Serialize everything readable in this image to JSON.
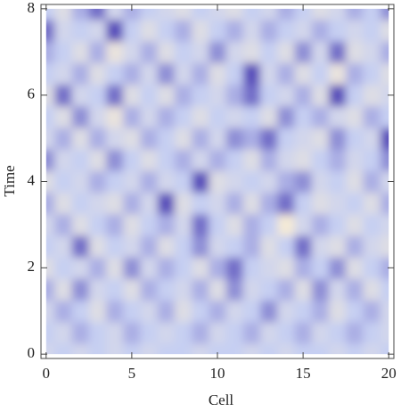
{
  "chart_data": {
    "type": "heatmap",
    "xlabel": "Cell",
    "ylabel": "Time",
    "x": [
      0,
      1,
      2,
      3,
      4,
      5,
      6,
      7,
      8,
      9,
      10,
      11,
      12,
      13,
      14,
      15,
      16,
      17,
      18,
      19,
      20
    ],
    "y": [
      0,
      0.5,
      1,
      1.5,
      2,
      2.5,
      3,
      3.5,
      4,
      4.5,
      5,
      5.5,
      6,
      6.5,
      7,
      7.5,
      8
    ],
    "z": [
      [
        0.4,
        0.5,
        0.4,
        0.5,
        0.4,
        0.5,
        0.4,
        0.5,
        0.5,
        0.4,
        0.5,
        0.5,
        0.4,
        0.5,
        0.4,
        0.5,
        0.5,
        0.4,
        0.5,
        0.4,
        0.5
      ],
      [
        0.5,
        0.4,
        0.6,
        0.5,
        0.4,
        0.6,
        0.5,
        0.4,
        0.5,
        0.6,
        0.4,
        0.5,
        0.6,
        0.4,
        0.5,
        0.6,
        0.4,
        0.5,
        0.6,
        0.5,
        0.4
      ],
      [
        0.4,
        0.6,
        0.5,
        0.3,
        0.6,
        0.5,
        0.4,
        0.6,
        0.3,
        0.5,
        0.6,
        0.4,
        0.5,
        0.7,
        0.4,
        0.5,
        0.6,
        0.3,
        0.5,
        0.6,
        0.4
      ],
      [
        0.6,
        0.3,
        0.7,
        0.4,
        0.5,
        0.3,
        0.6,
        0.5,
        0.4,
        0.6,
        0.3,
        0.7,
        0.4,
        0.5,
        0.6,
        0.3,
        0.7,
        0.4,
        0.6,
        0.3,
        0.5
      ],
      [
        0.3,
        0.5,
        0.4,
        0.6,
        0.3,
        0.7,
        0.4,
        0.6,
        0.5,
        0.3,
        0.6,
        0.8,
        0.5,
        0.4,
        0.3,
        0.6,
        0.5,
        0.7,
        0.3,
        0.5,
        0.6
      ],
      [
        0.5,
        0.4,
        0.8,
        0.3,
        0.5,
        0.4,
        0.6,
        0.3,
        0.5,
        0.7,
        0.4,
        0.5,
        0.6,
        0.3,
        0.5,
        0.8,
        0.4,
        0.3,
        0.6,
        0.4,
        0.3
      ],
      [
        0.4,
        0.6,
        0.3,
        0.5,
        0.6,
        0.3,
        0.5,
        0.6,
        0.4,
        0.8,
        0.5,
        0.3,
        0.6,
        0.5,
        0.1,
        0.4,
        0.6,
        0.5,
        0.3,
        0.5,
        0.4
      ],
      [
        0.6,
        0.3,
        0.5,
        0.4,
        0.3,
        0.6,
        0.4,
        0.9,
        0.3,
        0.5,
        0.4,
        0.6,
        0.3,
        0.6,
        0.8,
        0.5,
        0.3,
        0.4,
        0.5,
        0.3,
        0.6
      ],
      [
        0.3,
        0.5,
        0.4,
        0.6,
        0.5,
        0.4,
        0.6,
        0.4,
        0.5,
        0.9,
        0.3,
        0.4,
        0.5,
        0.4,
        0.6,
        0.7,
        0.4,
        0.5,
        0.3,
        0.6,
        0.4
      ],
      [
        0.7,
        0.4,
        0.5,
        0.3,
        0.7,
        0.5,
        0.3,
        0.5,
        0.6,
        0.4,
        0.6,
        0.5,
        0.3,
        0.6,
        0.4,
        0.3,
        0.5,
        0.6,
        0.4,
        0.5,
        0.7
      ],
      [
        0.4,
        0.6,
        0.3,
        0.6,
        0.4,
        0.3,
        0.6,
        0.5,
        0.3,
        0.6,
        0.4,
        0.7,
        0.6,
        0.8,
        0.5,
        0.4,
        0.3,
        0.7,
        0.5,
        0.4,
        0.9
      ],
      [
        0.5,
        0.3,
        0.7,
        0.4,
        0.2,
        0.6,
        0.4,
        0.6,
        0.5,
        0.3,
        0.5,
        0.4,
        0.5,
        0.3,
        0.7,
        0.5,
        0.6,
        0.4,
        0.3,
        0.6,
        0.5
      ],
      [
        0.3,
        0.8,
        0.4,
        0.5,
        0.8,
        0.3,
        0.5,
        0.3,
        0.6,
        0.5,
        0.4,
        0.6,
        0.8,
        0.5,
        0.4,
        0.6,
        0.3,
        0.9,
        0.5,
        0.3,
        0.4
      ],
      [
        0.5,
        0.4,
        0.6,
        0.3,
        0.5,
        0.6,
        0.4,
        0.7,
        0.4,
        0.6,
        0.3,
        0.5,
        0.9,
        0.4,
        0.6,
        0.3,
        0.5,
        0.2,
        0.6,
        0.5,
        0.3
      ],
      [
        0.6,
        0.5,
        0.3,
        0.6,
        0.2,
        0.4,
        0.6,
        0.3,
        0.5,
        0.4,
        0.7,
        0.4,
        0.3,
        0.5,
        0.3,
        0.7,
        0.4,
        0.8,
        0.3,
        0.4,
        0.6
      ],
      [
        0.8,
        0.4,
        0.5,
        0.4,
        0.9,
        0.5,
        0.3,
        0.5,
        0.6,
        0.3,
        0.5,
        0.6,
        0.4,
        0.6,
        0.5,
        0.4,
        0.6,
        0.5,
        0.4,
        0.5,
        0.3
      ],
      [
        0.5,
        0.3,
        0.6,
        0.8,
        0.4,
        0.6,
        0.5,
        0.4,
        0.3,
        0.5,
        0.4,
        0.3,
        0.5,
        0.4,
        0.6,
        0.5,
        0.3,
        0.4,
        0.6,
        0.5,
        0.7
      ]
    ],
    "colors": [
      "#f4ead6",
      "#c6cff2",
      "#564cba"
    ],
    "xlim": [
      -0.3,
      20.3
    ],
    "ylim": [
      -0.1,
      8.1
    ],
    "xticks": [
      0,
      5,
      10,
      15,
      20
    ],
    "yticks": [
      0,
      2,
      4,
      6,
      8
    ]
  }
}
